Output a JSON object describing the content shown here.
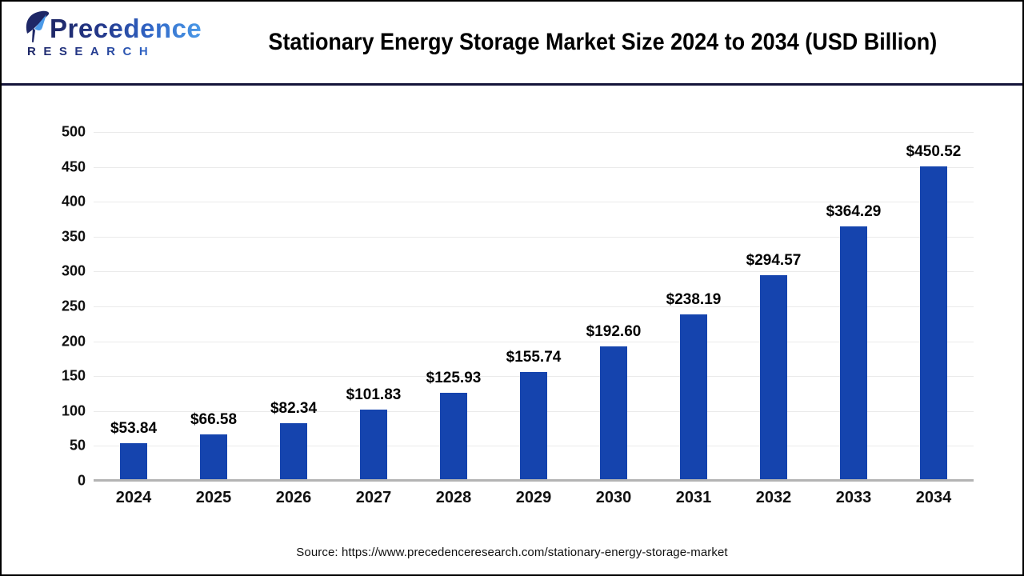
{
  "header": {
    "logo": {
      "name": "Precedence",
      "subname": "RESEARCH",
      "mark_dark_color": "#1e2766",
      "mark_light_color": "#4b9ae8"
    },
    "title": "Stationary Energy Storage Market Size 2024 to 2034 (USD Billion)"
  },
  "chart_data": {
    "type": "bar",
    "title": "Stationary Energy Storage Market Size 2024 to 2034 (USD Billion)",
    "categories": [
      "2024",
      "2025",
      "2026",
      "2027",
      "2028",
      "2029",
      "2030",
      "2031",
      "2032",
      "2033",
      "2034"
    ],
    "values": [
      53.84,
      66.58,
      82.34,
      101.83,
      125.93,
      155.74,
      192.6,
      238.19,
      294.57,
      364.29,
      450.52
    ],
    "value_labels": [
      "$53.84",
      "$66.58",
      "$82.34",
      "$101.83",
      "$125.93",
      "$155.74",
      "$192.60",
      "$238.19",
      "$294.57",
      "$364.29",
      "$450.52"
    ],
    "xlabel": "",
    "ylabel": "",
    "ylim": [
      0,
      500
    ],
    "yticks": [
      0,
      50,
      100,
      150,
      200,
      250,
      300,
      350,
      400,
      450,
      500
    ],
    "grid": true,
    "legend": false,
    "bar_color": "#1544ae"
  },
  "footer": {
    "source": "Source: https://www.precedenceresearch.com/stationary-energy-storage-market"
  },
  "colors": {
    "bar": "#1544ae",
    "gridline": "#eaeaea",
    "baseline": "#b4b4b4",
    "header_separator": "#15153a",
    "page_border": "#000000",
    "text": "#111111"
  }
}
